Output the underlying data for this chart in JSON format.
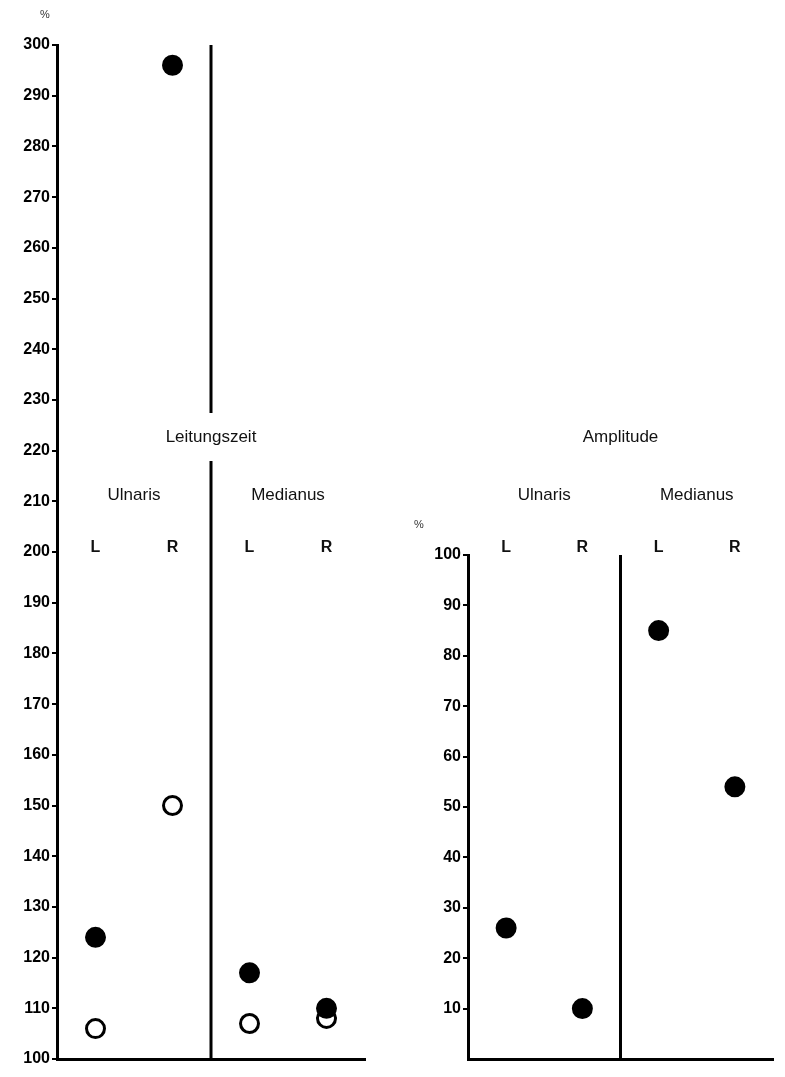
{
  "chart_data": [
    {
      "type": "scatter",
      "title": "Leitungszeit",
      "ylabel": "%",
      "categories": [
        "L",
        "R",
        "L",
        "R"
      ],
      "annotations": [
        "Ulnaris",
        "Medianus"
      ],
      "marker": "circle",
      "ylim": [
        100,
        300
      ],
      "yticks": [
        100,
        110,
        120,
        130,
        140,
        150,
        160,
        170,
        180,
        190,
        200,
        210,
        220,
        230,
        240,
        250,
        260,
        270,
        280,
        290,
        300
      ],
      "series": [
        {
          "color": "#000000",
          "values": [
            124,
            296,
            117,
            110
          ]
        },
        {
          "color": "#ffffff",
          "values": [
            106,
            150,
            107,
            108
          ]
        }
      ]
    },
    {
      "type": "scatter",
      "title": "Amplitude",
      "ylabel": "%",
      "categories": [
        "L",
        "R",
        "L",
        "R"
      ],
      "annotations": [
        "Ulnaris",
        "Medianus"
      ],
      "marker": "circle",
      "ylim": [
        0,
        100
      ],
      "yticks": [
        10,
        20,
        30,
        40,
        50,
        60,
        70,
        80,
        90,
        100
      ],
      "series": [
        {
          "color": "#000000",
          "values": [
            26,
            10,
            85,
            54
          ]
        }
      ]
    }
  ]
}
